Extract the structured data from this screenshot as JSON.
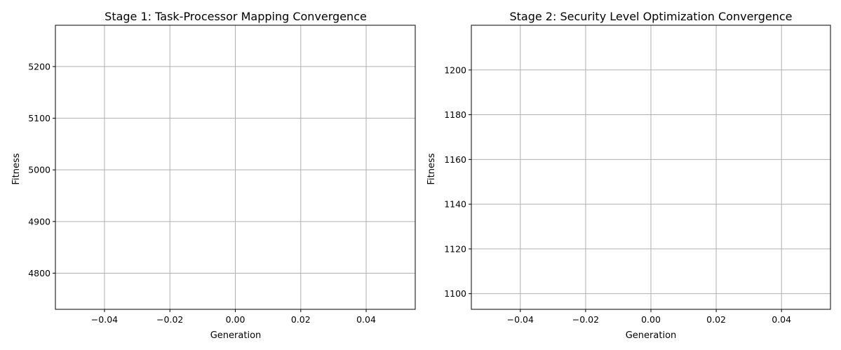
{
  "chart_data": [
    {
      "type": "line",
      "title": "Stage 1: Task-Processor Mapping Convergence",
      "xlabel": "Generation",
      "ylabel": "Fitness",
      "xlim": [
        -0.055,
        0.055
      ],
      "ylim": [
        4730,
        5280
      ],
      "xticks": [
        -0.04,
        -0.02,
        0.0,
        0.02,
        0.04
      ],
      "xtick_labels": [
        "−0.04",
        "−0.02",
        "0.00",
        "0.02",
        "0.04"
      ],
      "yticks": [
        4800,
        4900,
        5000,
        5100,
        5200
      ],
      "ytick_labels": [
        "4800",
        "4900",
        "5000",
        "5100",
        "5200"
      ],
      "grid": true,
      "series": []
    },
    {
      "type": "line",
      "title": "Stage 2: Security Level Optimization Convergence",
      "xlabel": "Generation",
      "ylabel": "Fitness",
      "xlim": [
        -0.055,
        0.055
      ],
      "ylim": [
        1093,
        1220
      ],
      "xticks": [
        -0.04,
        -0.02,
        0.0,
        0.02,
        0.04
      ],
      "xtick_labels": [
        "−0.04",
        "−0.02",
        "0.00",
        "0.02",
        "0.04"
      ],
      "yticks": [
        1100,
        1120,
        1140,
        1160,
        1180,
        1200
      ],
      "ytick_labels": [
        "1100",
        "1120",
        "1140",
        "1160",
        "1180",
        "1200"
      ],
      "grid": true,
      "series": []
    }
  ]
}
